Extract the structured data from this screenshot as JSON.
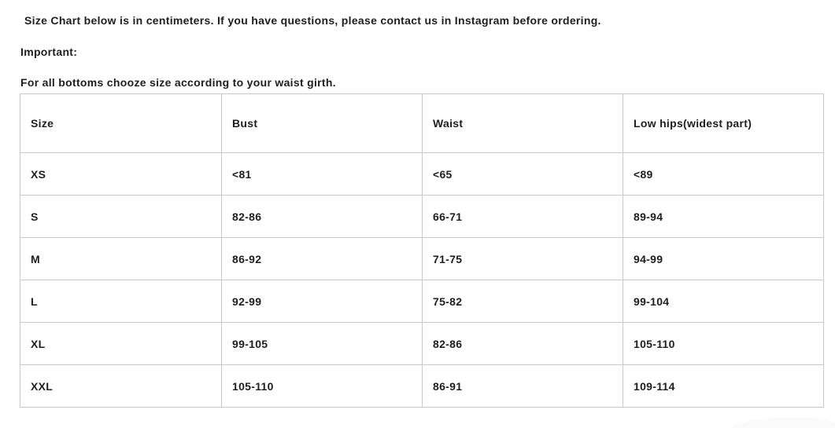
{
  "intro": {
    "line1": "Size Chart below is in centimeters. If you have questions, please contact us in Instagram before ordering.",
    "line2": "Important:",
    "line3": "For all bottoms chooze size according to your waist girth."
  },
  "size_chart": {
    "columns": [
      "Size",
      "Bust",
      "Waist",
      "Low hips(widest part)"
    ],
    "rows": [
      [
        "XS",
        "<81",
        "<65",
        "<89"
      ],
      [
        "S",
        "82-86",
        "66-71",
        "89-94"
      ],
      [
        "M",
        "86-92",
        "71-75",
        "94-99"
      ],
      [
        "L",
        "92-99",
        "75-82",
        "99-104"
      ],
      [
        "XL",
        "99-105",
        "82-86",
        "105-110"
      ],
      [
        "XXL",
        "105-110",
        "86-91",
        "109-114"
      ]
    ],
    "units": "centimeters"
  },
  "colors": {
    "text": "#1e1e1e",
    "table_border": "#c9c9c9",
    "background": "#ffffff",
    "bottom_shape": "#fafafa"
  }
}
